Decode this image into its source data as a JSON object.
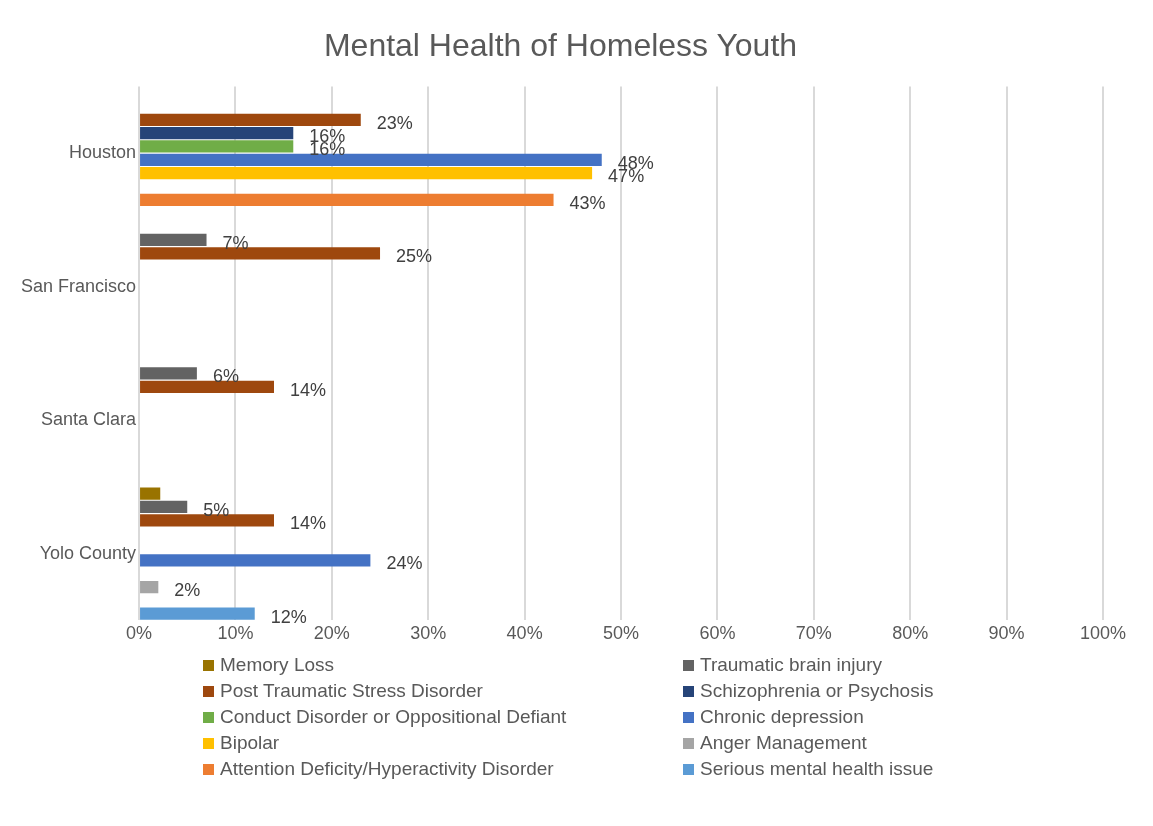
{
  "chart_data": {
    "type": "bar",
    "orientation": "horizontal",
    "title": "Mental Health of Homeless Youth",
    "categories": [
      "Houston",
      "San Francisco",
      "Santa Clara",
      "Yolo County"
    ],
    "series": [
      {
        "name": "Memory Loss",
        "color": "#997300",
        "values": [
          null,
          null,
          null,
          2.2
        ],
        "value_labels": [
          null,
          null,
          null,
          null
        ]
      },
      {
        "name": "Traumatic brain injury",
        "color": "#636363",
        "values": [
          null,
          7,
          6,
          5
        ],
        "value_labels": [
          null,
          "7%",
          "6%",
          "5%"
        ]
      },
      {
        "name": "Post Traumatic Stress Disorder",
        "color": "#9e480e",
        "values": [
          23,
          25,
          14,
          14
        ],
        "value_labels": [
          "23%",
          "25%",
          "14%",
          "14%"
        ]
      },
      {
        "name": "Schizophrenia or Psychosis",
        "color": "#264478",
        "values": [
          16,
          null,
          null,
          null
        ],
        "value_labels": [
          "16%",
          null,
          null,
          null
        ]
      },
      {
        "name": "Conduct Disorder or Oppositional Defiant",
        "color": "#70ad47",
        "values": [
          16,
          null,
          null,
          null
        ],
        "value_labels": [
          "16%",
          null,
          null,
          null
        ]
      },
      {
        "name": "Chronic depression",
        "color": "#4472c4",
        "values": [
          48,
          null,
          null,
          24
        ],
        "value_labels": [
          "48%",
          null,
          null,
          "24%"
        ]
      },
      {
        "name": "Bipolar",
        "color": "#ffc000",
        "values": [
          47,
          null,
          null,
          null
        ],
        "value_labels": [
          "47%",
          null,
          null,
          null
        ]
      },
      {
        "name": "Anger Management",
        "color": "#a5a5a5",
        "values": [
          null,
          null,
          null,
          2
        ],
        "value_labels": [
          null,
          null,
          null,
          "2%"
        ]
      },
      {
        "name": "Attention Deficity/Hyperactivity Disorder",
        "color": "#ed7d31",
        "values": [
          43,
          null,
          null,
          null
        ],
        "value_labels": [
          "43%",
          null,
          null,
          null
        ]
      },
      {
        "name": "Serious mental health issue",
        "color": "#5b9bd5",
        "values": [
          null,
          null,
          null,
          12
        ],
        "value_labels": [
          null,
          null,
          null,
          "12%"
        ]
      }
    ],
    "xlim": [
      0,
      100
    ],
    "xticks": [
      {
        "value": 0,
        "label": "0%"
      },
      {
        "value": 10,
        "label": "10%"
      },
      {
        "value": 20,
        "label": "20%"
      },
      {
        "value": 30,
        "label": "30%"
      },
      {
        "value": 40,
        "label": "40%"
      },
      {
        "value": 50,
        "label": "50%"
      },
      {
        "value": 60,
        "label": "60%"
      },
      {
        "value": 70,
        "label": "70%"
      },
      {
        "value": 80,
        "label": "80%"
      },
      {
        "value": 90,
        "label": "90%"
      },
      {
        "value": 100,
        "label": "100%"
      }
    ],
    "grid": "x",
    "legend": "bottom"
  }
}
